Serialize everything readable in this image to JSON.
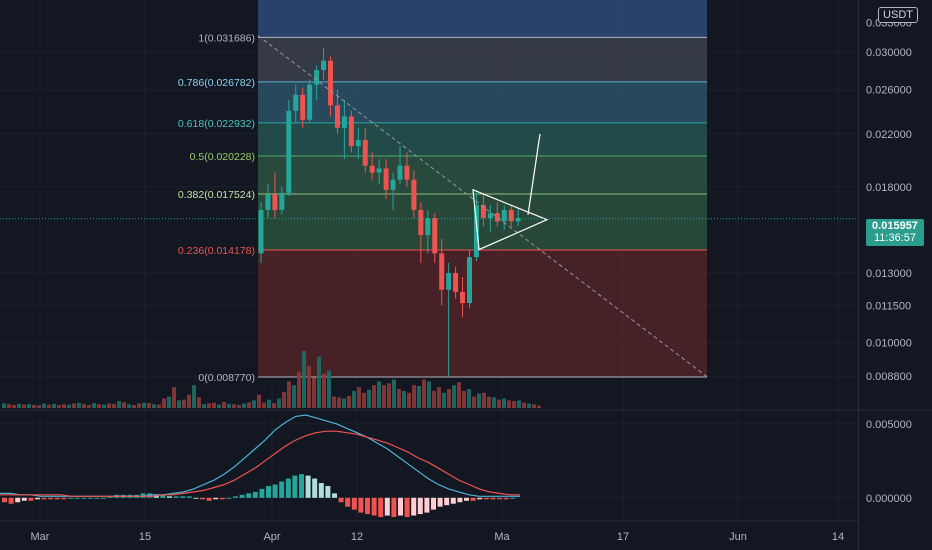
{
  "quote_currency": "USDT",
  "last_price": {
    "value": "0.015957",
    "countdown": "11:36:57"
  },
  "colors": {
    "up": "#26a69a",
    "down": "#ef5350",
    "background": "#131722",
    "grid": "#1e222d"
  },
  "chart_data": [
    {
      "type": "candlestick",
      "x_axis_labels": [
        "Mar",
        "15",
        "Apr",
        "12",
        "Ma",
        "17",
        "Jun",
        "14"
      ],
      "y_axis": {
        "scale": "log",
        "ylim": [
          0.0078,
          0.0365
        ],
        "tick_labels": [
          "0.030000",
          "0.026000",
          "0.022000",
          "0.018000",
          "0.013000",
          "0.011500",
          "0.010000",
          "0.008800"
        ]
      },
      "fibonacci": [
        {
          "label": "1(0.031686)",
          "value": 0.031686
        },
        {
          "label": "0.786(0.026782)",
          "value": 0.026782
        },
        {
          "label": "0.618(0.022932)",
          "value": 0.022932
        },
        {
          "label": "0.5(0.020228)",
          "value": 0.020228
        },
        {
          "label": "0.382(0.017524)",
          "value": 0.017524
        },
        {
          "label": "0.236(0.014178)",
          "value": 0.014178
        },
        {
          "label": "0(0.008770)",
          "value": 0.00877
        }
      ],
      "ohlc": [
        [
          0.014,
          0.017,
          0.0135,
          0.0165
        ],
        [
          0.0165,
          0.0182,
          0.016,
          0.0175
        ],
        [
          0.0175,
          0.019,
          0.016,
          0.0165
        ],
        [
          0.0165,
          0.018,
          0.0162,
          0.0176
        ],
        [
          0.0176,
          0.025,
          0.0174,
          0.024
        ],
        [
          0.024,
          0.0265,
          0.023,
          0.0255
        ],
        [
          0.0255,
          0.0262,
          0.0225,
          0.0232
        ],
        [
          0.0232,
          0.027,
          0.023,
          0.0265
        ],
        [
          0.0265,
          0.0285,
          0.025,
          0.028
        ],
        [
          0.028,
          0.0305,
          0.027,
          0.029
        ],
        [
          0.029,
          0.0295,
          0.0235,
          0.0245
        ],
        [
          0.0245,
          0.026,
          0.022,
          0.0225
        ],
        [
          0.0225,
          0.025,
          0.02,
          0.0235
        ],
        [
          0.0235,
          0.024,
          0.0205,
          0.021
        ],
        [
          0.021,
          0.0225,
          0.02,
          0.0215
        ],
        [
          0.0215,
          0.0225,
          0.019,
          0.0195
        ],
        [
          0.0195,
          0.0205,
          0.0185,
          0.019
        ],
        [
          0.019,
          0.02,
          0.0182,
          0.0193
        ],
        [
          0.0193,
          0.02,
          0.0172,
          0.0178
        ],
        [
          0.0178,
          0.019,
          0.0165,
          0.0185
        ],
        [
          0.0185,
          0.021,
          0.0182,
          0.0195
        ],
        [
          0.0195,
          0.0205,
          0.018,
          0.0185
        ],
        [
          0.0185,
          0.0192,
          0.016,
          0.0165
        ],
        [
          0.0165,
          0.017,
          0.0135,
          0.015
        ],
        [
          0.015,
          0.0165,
          0.014,
          0.016
        ],
        [
          0.016,
          0.0163,
          0.0135,
          0.014
        ],
        [
          0.014,
          0.0148,
          0.0115,
          0.0122
        ],
        [
          0.0122,
          0.0135,
          0.0088,
          0.013
        ],
        [
          0.013,
          0.0133,
          0.0118,
          0.0121
        ],
        [
          0.0121,
          0.0128,
          0.011,
          0.0116
        ],
        [
          0.0116,
          0.0142,
          0.0114,
          0.0138
        ],
        [
          0.0138,
          0.0176,
          0.0136,
          0.0168
        ],
        [
          0.0168,
          0.0176,
          0.0155,
          0.016
        ],
        [
          0.016,
          0.0168,
          0.0152,
          0.0163
        ],
        [
          0.0163,
          0.017,
          0.0155,
          0.0158
        ],
        [
          0.0158,
          0.0168,
          0.0153,
          0.0165
        ],
        [
          0.0165,
          0.0168,
          0.0155,
          0.0158
        ],
        [
          0.0158,
          0.0166,
          0.0155,
          0.016
        ]
      ],
      "volume": [
        12,
        10,
        8,
        11,
        9,
        10,
        8,
        7,
        12,
        9,
        11,
        8,
        10,
        9,
        12,
        14,
        11,
        8,
        13,
        10,
        9,
        12,
        11,
        18,
        15,
        10,
        8,
        12,
        14,
        13,
        10,
        9,
        25,
        30,
        55,
        20,
        22,
        35,
        60,
        28,
        10,
        12,
        14,
        9,
        16,
        11,
        10,
        8,
        12,
        15,
        20,
        35,
        14,
        22,
        13,
        25,
        42,
        70,
        60,
        95,
        150,
        110,
        80,
        135,
        90,
        98,
        30,
        28,
        25,
        32,
        45,
        55,
        40,
        48,
        60,
        70,
        60,
        65,
        75,
        50,
        45,
        40,
        60,
        58,
        75,
        70,
        45,
        55,
        40,
        50,
        60,
        68,
        45,
        50,
        30,
        38,
        40,
        30,
        28,
        22,
        25,
        20,
        18,
        20,
        14,
        12,
        10,
        6
      ],
      "macd_range": [
        -0.0015,
        0.0058
      ],
      "macd_tick_labels": [
        "0.005000",
        "0.000000"
      ],
      "macd": [
        0.0003,
        0.0003,
        0.0002,
        0.0002,
        0.0001,
        0.0001,
        0.0001,
        0.0001,
        0.0001,
        0.0001,
        0.0001,
        0.0001,
        0.0001,
        0.0001,
        0.0001,
        0.0002,
        0.0002,
        0.0003,
        0.0004,
        0.0006,
        0.0009,
        0.0012,
        0.0016,
        0.0021,
        0.0027,
        0.0033,
        0.0039,
        0.0046,
        0.0051,
        0.0055,
        0.0056,
        0.0054,
        0.0052,
        0.005,
        0.0047,
        0.0044,
        0.0041,
        0.0037,
        0.0033,
        0.0028,
        0.0023,
        0.0018,
        0.0013,
        0.0009,
        0.0006,
        0.0004,
        0.0002,
        0.0001,
        0.0001,
        0.0001,
        0.0001,
        0.0001
      ],
      "signal": [
        0.0002,
        0.0002,
        0.0002,
        0.0002,
        0.0002,
        0.0002,
        0.0002,
        0.0001,
        0.0001,
        0.0001,
        0.0001,
        0.0001,
        0.0001,
        0.0001,
        0.0001,
        0.0001,
        0.0002,
        0.0002,
        0.0003,
        0.0004,
        0.0005,
        0.0007,
        0.0009,
        0.0012,
        0.0016,
        0.002,
        0.0025,
        0.003,
        0.0035,
        0.0039,
        0.0042,
        0.0044,
        0.0045,
        0.0045,
        0.0044,
        0.0043,
        0.0041,
        0.0039,
        0.0037,
        0.0034,
        0.0031,
        0.0027,
        0.0024,
        0.002,
        0.0016,
        0.0012,
        0.0009,
        0.0006,
        0.0004,
        0.0003,
        0.0002,
        0.0002
      ],
      "histogram": [
        -0.0003,
        -0.0004,
        -0.0003,
        -0.0002,
        -0.0002,
        -0.0001,
        -0.0001,
        -0.0001,
        -0.0001,
        -0.0001,
        0.0,
        0.0,
        0.0,
        0.0,
        0.0,
        0.0,
        0.0001,
        0.0002,
        0.0002,
        0.0002,
        0.0002,
        0.0003,
        0.0003,
        0.0002,
        0.0002,
        0.0001,
        0.0001,
        0.0001,
        0.0001,
        0.0,
        -0.0001,
        -0.0002,
        -0.0001,
        -0.0001,
        0.0,
        0.0001,
        0.0002,
        0.0003,
        0.0004,
        0.0006,
        0.0008,
        0.0009,
        0.0011,
        0.0013,
        0.0015,
        0.0016,
        0.0015,
        0.0013,
        0.001,
        0.0008,
        0.0003,
        -0.0003,
        -0.0006,
        -0.0008,
        -0.001,
        -0.0011,
        -0.0012,
        -0.0013,
        -0.0012,
        -0.0013,
        -0.0012,
        -0.0013,
        -0.0012,
        -0.0011,
        -0.001,
        -0.0008,
        -0.0006,
        -0.0005,
        -0.0004,
        -0.0003,
        -0.0002,
        -0.0002,
        -0.0001,
        -0.0001,
        -0.0001,
        -0.0001,
        -0.0001,
        0.0
      ],
      "histogram_start_label": "Mar"
    }
  ]
}
